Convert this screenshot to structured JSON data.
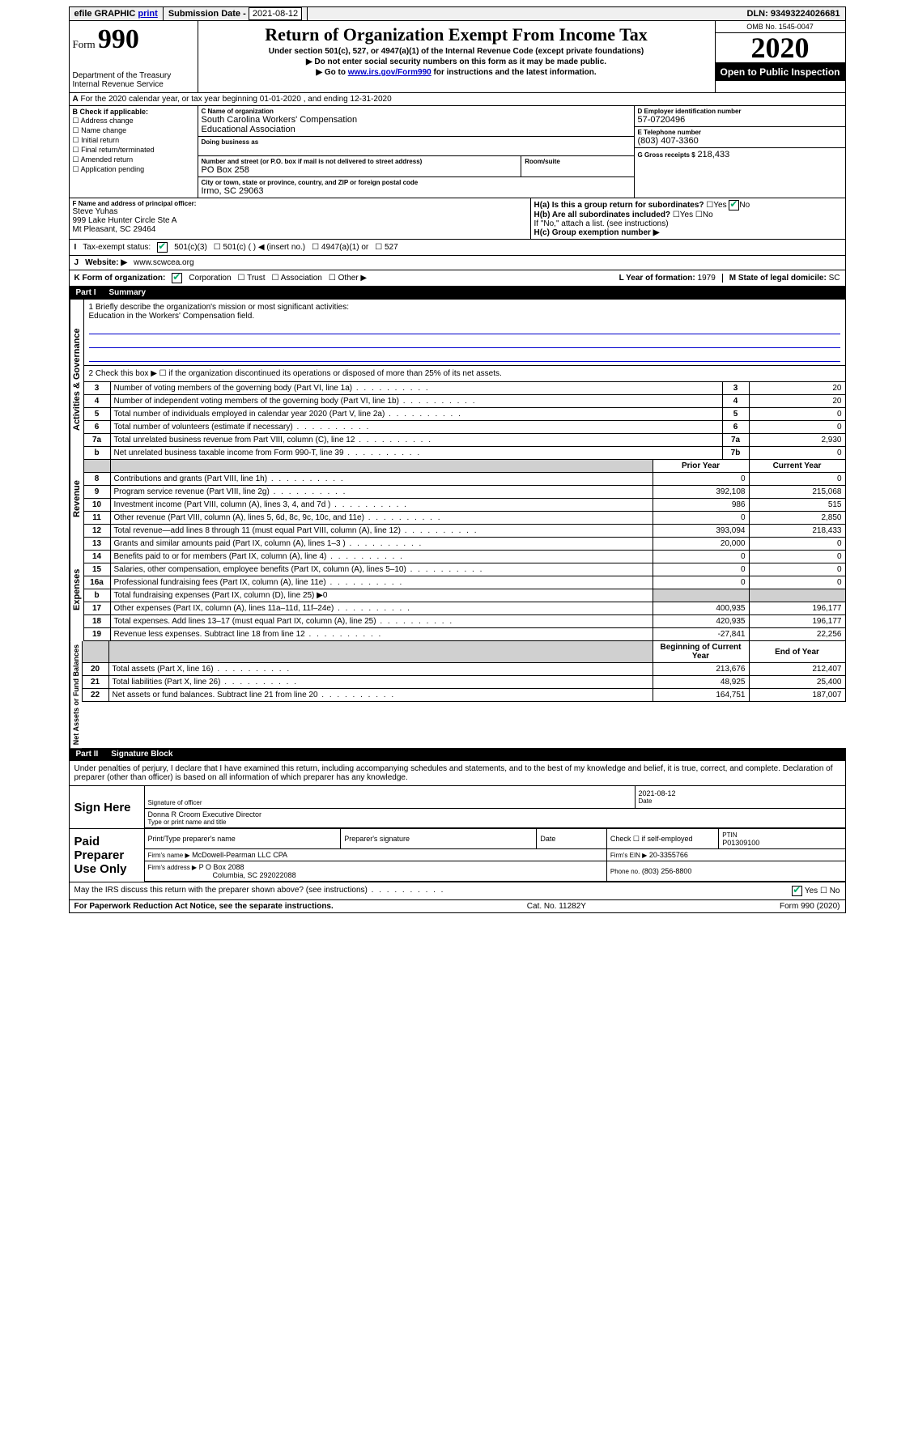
{
  "topbar": {
    "efile": "efile GRAPHIC",
    "print": "print",
    "sub_label": "Submission Date -",
    "sub_date": "2021-08-12",
    "dln_label": "DLN:",
    "dln": "93493224026681"
  },
  "header": {
    "form_label": "Form",
    "form_no": "990",
    "dept1": "Department of the Treasury",
    "dept2": "Internal Revenue Service",
    "title": "Return of Organization Exempt From Income Tax",
    "sub": "Under section 501(c), 527, or 4947(a)(1) of the Internal Revenue Code (except private foundations)",
    "note1": "▶ Do not enter social security numbers on this form as it may be made public.",
    "note2_pre": "▶ Go to ",
    "note2_link": "www.irs.gov/Form990",
    "note2_post": " for instructions and the latest information.",
    "omb": "OMB No. 1545-0047",
    "year": "2020",
    "open": "Open to Public Inspection"
  },
  "periodA": "For the 2020 calendar year, or tax year beginning 01-01-2020   , and ending 12-31-2020",
  "boxB": {
    "title": "B Check if applicable:",
    "opts": [
      "Address change",
      "Name change",
      "Initial return",
      "Final return/terminated",
      "Amended return",
      "Application pending"
    ]
  },
  "boxC": {
    "name_lbl": "C Name of organization",
    "name1": "South Carolina Workers' Compensation",
    "name2": "Educational Association",
    "dba_lbl": "Doing business as",
    "addr_lbl": "Number and street (or P.O. box if mail is not delivered to street address)",
    "room_lbl": "Room/suite",
    "addr": "PO Box 258",
    "city_lbl": "City or town, state or province, country, and ZIP or foreign postal code",
    "city": "Irmo, SC  29063"
  },
  "boxD": {
    "lbl": "D Employer identification number",
    "val": "57-0720496"
  },
  "boxE": {
    "lbl": "E Telephone number",
    "val": "(803) 407-3360"
  },
  "boxG": {
    "lbl": "G Gross receipts $",
    "val": "218,433"
  },
  "boxF": {
    "lbl": "F  Name and address of principal officer:",
    "name": "Steve Yuhas",
    "addr1": "999 Lake Hunter Circle Ste A",
    "addr2": "Mt Pleasant, SC  29464"
  },
  "boxH": {
    "a": "H(a)  Is this a group return for subordinates?",
    "b": "H(b)  Are all subordinates included?",
    "note": "If \"No,\" attach a list. (see instructions)",
    "c": "H(c)  Group exemption number ▶",
    "yes": "Yes",
    "no": "No"
  },
  "boxI": {
    "lbl": "Tax-exempt status:",
    "opts": [
      "501(c)(3)",
      "501(c) (  ) ◀ (insert no.)",
      "4947(a)(1) or",
      "527"
    ]
  },
  "boxJ": {
    "lbl": "J",
    "label": "Website: ▶",
    "val": "www.scwcea.org"
  },
  "boxK": {
    "lbl": "K Form of organization:",
    "opts": [
      "Corporation",
      "Trust",
      "Association",
      "Other ▶"
    ]
  },
  "boxL": {
    "lbl": "L Year of formation:",
    "val": "1979"
  },
  "boxM": {
    "lbl": "M State of legal domicile:",
    "val": "SC"
  },
  "part1": {
    "num": "Part I",
    "title": "Summary"
  },
  "mission": {
    "q": "1  Briefly describe the organization's mission or most significant activities:",
    "a": "Education in the Workers' Compensation field."
  },
  "line2": "2    Check this box ▶ ☐  if the organization discontinued its operations or disposed of more than 25% of its net assets.",
  "gov_lines": [
    {
      "n": "3",
      "d": "Number of voting members of the governing body (Part VI, line 1a)",
      "b": "3",
      "v": "20"
    },
    {
      "n": "4",
      "d": "Number of independent voting members of the governing body (Part VI, line 1b)",
      "b": "4",
      "v": "20"
    },
    {
      "n": "5",
      "d": "Total number of individuals employed in calendar year 2020 (Part V, line 2a)",
      "b": "5",
      "v": "0"
    },
    {
      "n": "6",
      "d": "Total number of volunteers (estimate if necessary)",
      "b": "6",
      "v": "0"
    },
    {
      "n": "7a",
      "d": "Total unrelated business revenue from Part VIII, column (C), line 12",
      "b": "7a",
      "v": "2,930"
    },
    {
      "n": "b",
      "d": "Net unrelated business taxable income from Form 990-T, line 39",
      "b": "7b",
      "v": "0"
    }
  ],
  "rev_hdr": {
    "py": "Prior Year",
    "cy": "Current Year"
  },
  "rev_lines": [
    {
      "n": "8",
      "d": "Contributions and grants (Part VIII, line 1h)",
      "p": "0",
      "c": "0"
    },
    {
      "n": "9",
      "d": "Program service revenue (Part VIII, line 2g)",
      "p": "392,108",
      "c": "215,068"
    },
    {
      "n": "10",
      "d": "Investment income (Part VIII, column (A), lines 3, 4, and 7d )",
      "p": "986",
      "c": "515"
    },
    {
      "n": "11",
      "d": "Other revenue (Part VIII, column (A), lines 5, 6d, 8c, 9c, 10c, and 11e)",
      "p": "0",
      "c": "2,850"
    },
    {
      "n": "12",
      "d": "Total revenue—add lines 8 through 11 (must equal Part VIII, column (A), line 12)",
      "p": "393,094",
      "c": "218,433"
    }
  ],
  "exp_lines": [
    {
      "n": "13",
      "d": "Grants and similar amounts paid (Part IX, column (A), lines 1–3 )",
      "p": "20,000",
      "c": "0"
    },
    {
      "n": "14",
      "d": "Benefits paid to or for members (Part IX, column (A), line 4)",
      "p": "0",
      "c": "0"
    },
    {
      "n": "15",
      "d": "Salaries, other compensation, employee benefits (Part IX, column (A), lines 5–10)",
      "p": "0",
      "c": "0"
    },
    {
      "n": "16a",
      "d": "Professional fundraising fees (Part IX, column (A), line 11e)",
      "p": "0",
      "c": "0"
    },
    {
      "n": "b",
      "d": "Total fundraising expenses (Part IX, column (D), line 25) ▶0",
      "p": "",
      "c": "",
      "shade": true
    },
    {
      "n": "17",
      "d": "Other expenses (Part IX, column (A), lines 11a–11d, 11f–24e)",
      "p": "400,935",
      "c": "196,177"
    },
    {
      "n": "18",
      "d": "Total expenses. Add lines 13–17 (must equal Part IX, column (A), line 25)",
      "p": "420,935",
      "c": "196,177"
    },
    {
      "n": "19",
      "d": "Revenue less expenses. Subtract line 18 from line 12",
      "p": "-27,841",
      "c": "22,256"
    }
  ],
  "net_hdr": {
    "b": "Beginning of Current Year",
    "e": "End of Year"
  },
  "net_lines": [
    {
      "n": "20",
      "d": "Total assets (Part X, line 16)",
      "p": "213,676",
      "c": "212,407"
    },
    {
      "n": "21",
      "d": "Total liabilities (Part X, line 26)",
      "p": "48,925",
      "c": "25,400"
    },
    {
      "n": "22",
      "d": "Net assets or fund balances. Subtract line 21 from line 20",
      "p": "164,751",
      "c": "187,007"
    }
  ],
  "section_labels": {
    "gov": "Activities & Governance",
    "rev": "Revenue",
    "exp": "Expenses",
    "net": "Net Assets or Fund Balances"
  },
  "part2": {
    "num": "Part II",
    "title": "Signature Block"
  },
  "perjury": "Under penalties of perjury, I declare that I have examined this return, including accompanying schedules and statements, and to the best of my knowledge and belief, it is true, correct, and complete. Declaration of preparer (other than officer) is based on all information of which preparer has any knowledge.",
  "sign": {
    "side": "Sign Here",
    "sig_lbl": "Signature of officer",
    "date_lbl": "Date",
    "date": "2021-08-12",
    "name": "Donna R Croom  Executive Director",
    "name_lbl": "Type or print name and title"
  },
  "paid": {
    "side": "Paid Preparer Use Only",
    "c1": "Print/Type preparer's name",
    "c2": "Preparer's signature",
    "c3": "Date",
    "c4a": "Check ☐ if self-employed",
    "c5l": "PTIN",
    "c5v": "P01309100",
    "firm_lbl": "Firm's name     ▶",
    "firm": "McDowell-Pearman LLC CPA",
    "ein_lbl": "Firm's EIN ▶",
    "ein": "20-3355766",
    "addr_lbl": "Firm's address ▶",
    "addr1": "P O Box 2088",
    "addr2": "Columbia, SC  292022088",
    "phone_lbl": "Phone no.",
    "phone": "(803) 256-8800"
  },
  "discuss": {
    "q": "May the IRS discuss this return with the preparer shown above? (see instructions)",
    "yes": "Yes",
    "no": "No"
  },
  "footer": {
    "left": "For Paperwork Reduction Act Notice, see the separate instructions.",
    "mid": "Cat. No. 11282Y",
    "right": "Form 990 (2020)"
  }
}
